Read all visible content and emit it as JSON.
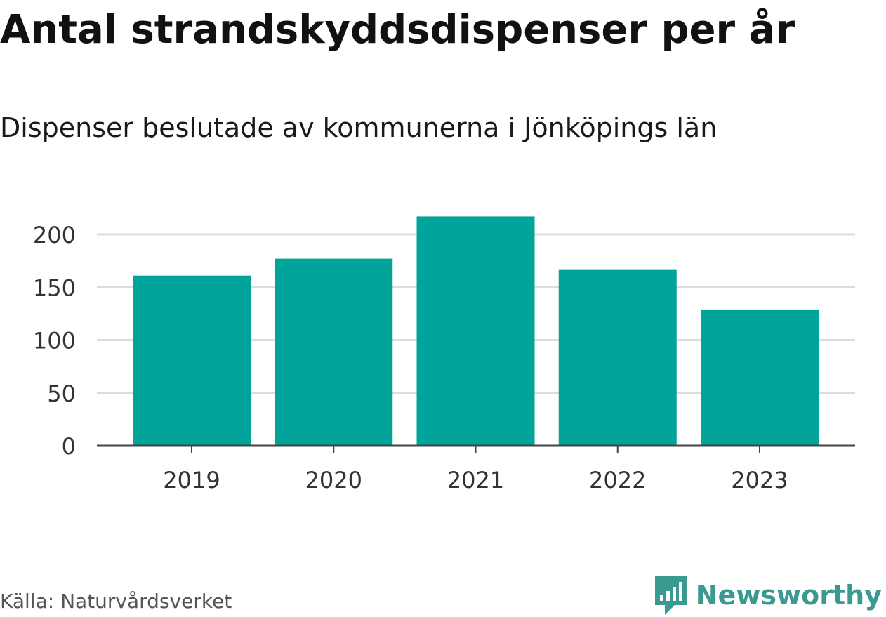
{
  "chart_data": {
    "type": "bar",
    "title": "Antal strandskyddsdispenser per år",
    "subtitle": "Dispenser beslutade av kommunerna i Jönköpings län",
    "categories": [
      "2019",
      "2020",
      "2021",
      "2022",
      "2023"
    ],
    "values": [
      161,
      177,
      217,
      167,
      129
    ],
    "xlabel": "",
    "ylabel": "",
    "ylim": [
      0,
      215
    ],
    "yticks": [
      0,
      50,
      100,
      150,
      200
    ],
    "ytick_labels": [
      "0",
      "50",
      "100",
      "150",
      "200"
    ],
    "grid": true,
    "bar_color": "#00a49b"
  },
  "footer": {
    "source": "Källa: Naturvårdsverket",
    "brand": "Newsworthy",
    "brand_color": "#3a9a92",
    "brand_icon": "newsworthy-logo-icon"
  }
}
